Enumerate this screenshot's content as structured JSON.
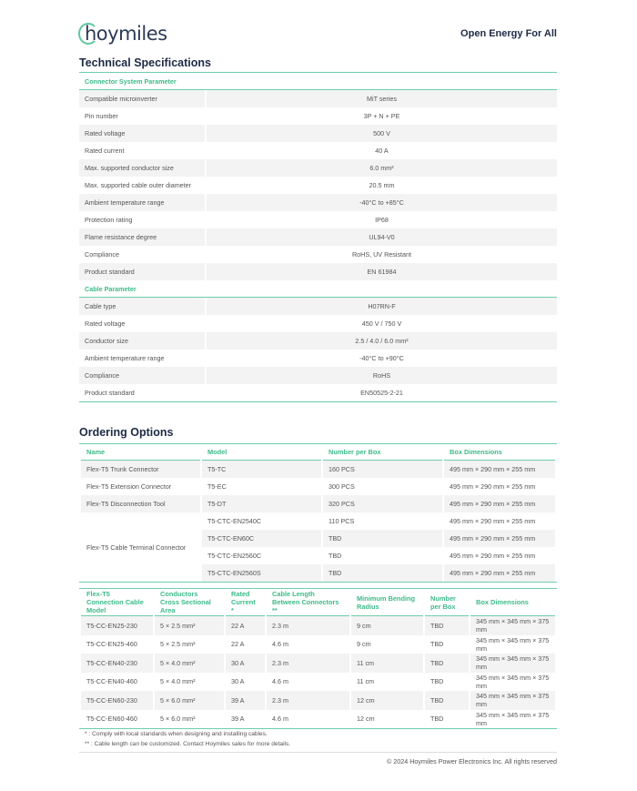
{
  "header": {
    "logo": "hoymiles",
    "slogan": "Open Energy For All"
  },
  "tech": {
    "title": "Technical Specifications",
    "connector": {
      "title": "Connector System Parameter",
      "rows": [
        [
          "Compatible microinverter",
          "MiT series"
        ],
        [
          "Pin number",
          "3P + N + PE"
        ],
        [
          "Rated voltage",
          "500 V"
        ],
        [
          "Rated current",
          "40 A"
        ],
        [
          "Max. supported conductor size",
          "6.0 mm²"
        ],
        [
          "Max. supported cable outer diameter",
          "20.5 mm"
        ],
        [
          "Ambient temperature range",
          "-40°C to +85°C"
        ],
        [
          "Protection rating",
          "IP68"
        ],
        [
          "Flame resistance degree",
          "UL94-V0"
        ],
        [
          "Compliance",
          "RoHS, UV Resistant"
        ],
        [
          "Product standard",
          "EN 61984"
        ]
      ]
    },
    "cable": {
      "title": "Cable Parameter",
      "rows": [
        [
          "Cable type",
          "H07RN-F"
        ],
        [
          "Rated voltage",
          "450 V / 750 V"
        ],
        [
          "Conductor size",
          "2.5 / 4.0 / 6.0 mm²"
        ],
        [
          "Ambient temperature range",
          "-40°C to +90°C"
        ],
        [
          "Compliance",
          "RoHS"
        ],
        [
          "Product standard",
          "EN50525-2-21"
        ]
      ]
    }
  },
  "ordering": {
    "title": "Ordering Options",
    "headers": [
      "Name",
      "Model",
      "Number per Box",
      "Box Dimensions"
    ],
    "rows": [
      [
        "Flex-T5 Trunk Connector",
        "T5-TC",
        "160 PCS",
        "495 mm × 290 mm × 255 mm"
      ],
      [
        "Flex-T5 Extension Connector",
        "T5-EC",
        "300 PCS",
        "495 mm × 290 mm × 255 mm"
      ],
      [
        "Flex-T5 Disconnection Tool",
        "T5-DT",
        "320 PCS",
        "495 mm × 290 mm × 255 mm"
      ]
    ],
    "terminal": {
      "name": "Flex-T5 Cable Terminal Connector",
      "rows": [
        [
          "T5-CTC-EN2540C",
          "110 PCS",
          "495 mm × 290 mm × 255 mm"
        ],
        [
          "T5-CTC-EN60C",
          "TBD",
          "495 mm × 290 mm × 255 mm"
        ],
        [
          "T5-CTC-EN2560C",
          "TBD",
          "495 mm × 290 mm × 255 mm"
        ],
        [
          "T5-CTC-EN2560S",
          "TBD",
          "495 mm × 290 mm × 255 mm"
        ]
      ]
    },
    "cable_headers": [
      "Flex-T5 Connection Cable Model",
      "Conductors Cross Sectional Area",
      "Rated Current *",
      "Cable Length Between Connectors **",
      "Minimum Bending Radius",
      "Number per Box",
      "Box Dimensions"
    ],
    "cable_rows": [
      [
        "T5-CC-EN25-230",
        "5 × 2.5 mm²",
        "22 A",
        "2.3 m",
        "9 cm",
        "TBD",
        "345 mm × 345 mm × 375 mm"
      ],
      [
        "T5-CC-EN25-460",
        "5 × 2.5 mm²",
        "22 A",
        "4.6 m",
        "9 cm",
        "TBD",
        "345 mm × 345 mm × 375 mm"
      ],
      [
        "T5-CC-EN40-230",
        "5 × 4.0 mm²",
        "30 A",
        "2.3 m",
        "11 cm",
        "TBD",
        "345 mm × 345 mm × 375 mm"
      ],
      [
        "T5-CC-EN40-460",
        "5 × 4.0 mm²",
        "30 A",
        "4.6 m",
        "11 cm",
        "TBD",
        "345 mm × 345 mm × 375 mm"
      ],
      [
        "T5-CC-EN60-230",
        "5 × 6.0 mm²",
        "39 A",
        "2.3 m",
        "12 cm",
        "TBD",
        "345 mm × 345 mm × 375 mm"
      ],
      [
        "T5-CC-EN60-460",
        "5 × 6.0 mm²",
        "39 A",
        "4.6 m",
        "12 cm",
        "TBD",
        "345 mm × 345 mm × 375 mm"
      ]
    ]
  },
  "footnotes": [
    "*   : Comply with local standards when designing and installing cables.",
    "** : Cable length can be customized. Contact Hoymiles sales for more details."
  ],
  "copyright": "© 2024 Hoymiles Power Electronics Inc. All rights reserved",
  "colors": {
    "accent": "#3dbb8a",
    "rule": "#6ccfa8",
    "title": "#1e2b45",
    "stripe": "#f3f3f3"
  }
}
